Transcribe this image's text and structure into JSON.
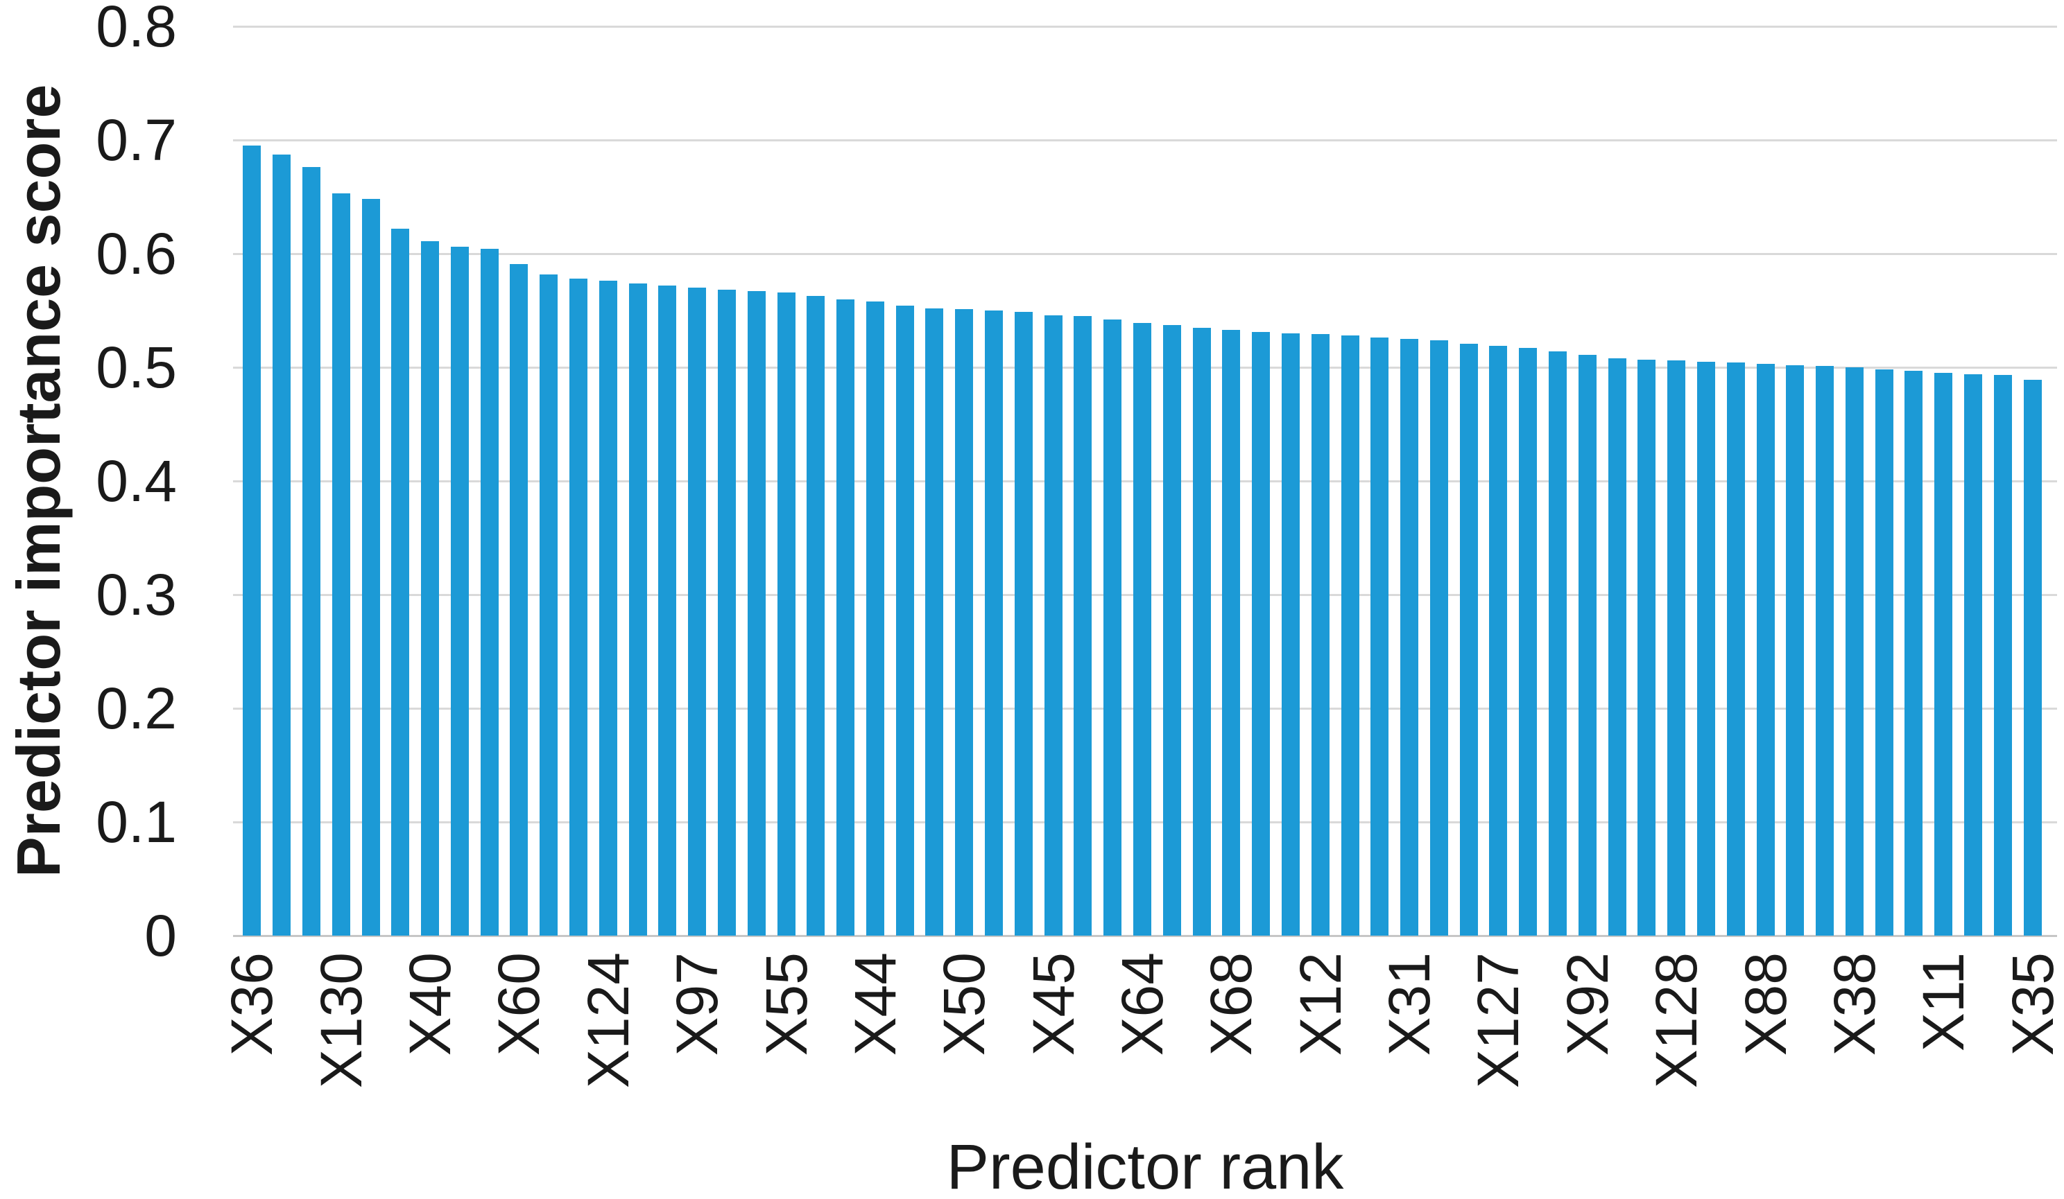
{
  "chart_data": {
    "type": "bar",
    "title": "",
    "xlabel": "Predictor rank",
    "ylabel": "Predictor importance score",
    "ylim": [
      0,
      0.8
    ],
    "y_ticks": [
      "0",
      "0.1",
      "0.2",
      "0.3",
      "0.4",
      "0.5",
      "0.6",
      "0.7",
      "0.8"
    ],
    "grid": true,
    "legend": "none",
    "bar_color": "#1c9ad6",
    "gridline_color": "#d9d9d9",
    "axis_line_color": "#c6c6c6",
    "text_color": "#1a1a1a",
    "n_bars": 61,
    "x_tick_label_every": 3,
    "x_tick_labels": [
      "X36",
      "X130",
      "X40",
      "X60",
      "X124",
      "X97",
      "X55",
      "X44",
      "X50",
      "X45",
      "X64",
      "X68",
      "X12",
      "X31",
      "X127",
      "X92",
      "X128",
      "X88",
      "X38",
      "X11",
      "X35"
    ],
    "values": [
      0.695,
      0.687,
      0.676,
      0.653,
      0.648,
      0.622,
      0.611,
      0.606,
      0.604,
      0.591,
      0.582,
      0.578,
      0.576,
      0.574,
      0.572,
      0.57,
      0.568,
      0.567,
      0.566,
      0.563,
      0.56,
      0.558,
      0.554,
      0.552,
      0.551,
      0.55,
      0.549,
      0.546,
      0.545,
      0.542,
      0.539,
      0.537,
      0.535,
      0.533,
      0.531,
      0.53,
      0.529,
      0.528,
      0.526,
      0.525,
      0.524,
      0.521,
      0.519,
      0.517,
      0.514,
      0.511,
      0.508,
      0.507,
      0.506,
      0.505,
      0.504,
      0.503,
      0.502,
      0.501,
      0.5,
      0.498,
      0.497,
      0.495,
      0.494,
      0.493,
      0.489
    ]
  }
}
